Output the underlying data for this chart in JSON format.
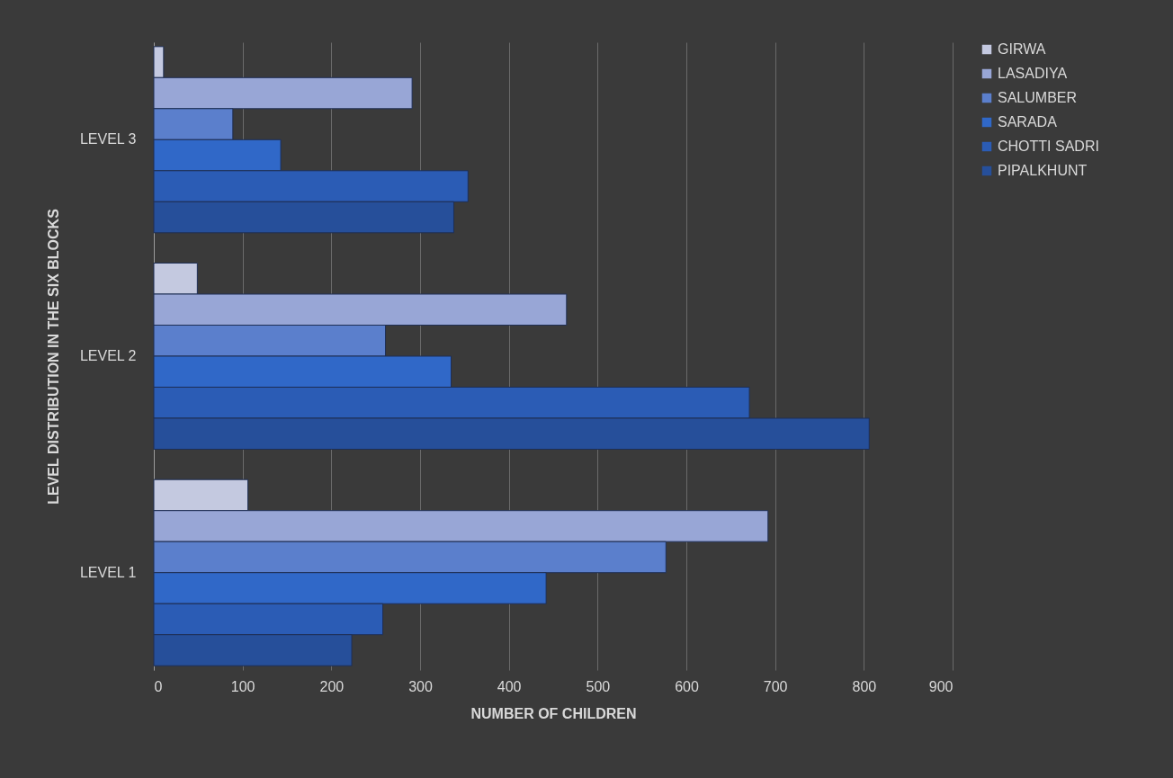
{
  "chart_data": {
    "type": "bar",
    "orientation": "horizontal",
    "xlabel": "NUMBER OF CHILDREN",
    "ylabel": "LEVEL DISTRIBUTION IN THE SIX BLOCKS",
    "categories": [
      "LEVEL 3",
      "LEVEL 2",
      "LEVEL 1"
    ],
    "series": [
      {
        "name": "GIRWA",
        "color": "#c4c9e0",
        "values": [
          11,
          49,
          106
        ]
      },
      {
        "name": "LASADIYA",
        "color": "#98a6d6",
        "values": [
          291,
          465,
          692
        ]
      },
      {
        "name": "SALUMBER",
        "color": "#5b7fcc",
        "values": [
          89,
          261,
          577
        ]
      },
      {
        "name": "SARADA",
        "color": "#3068c8",
        "values": [
          143,
          335,
          442
        ]
      },
      {
        "name": "CHOTTI SADRI",
        "color": "#2b5cb5",
        "values": [
          354,
          671,
          258
        ]
      },
      {
        "name": "PIPALKHUNT",
        "color": "#264f9a",
        "values": [
          338,
          806,
          223
        ]
      }
    ],
    "xlim": [
      0,
      900
    ],
    "xticks": [
      0,
      100,
      200,
      300,
      400,
      500,
      600,
      700,
      800,
      900
    ],
    "grid": "x",
    "legend": "right"
  }
}
